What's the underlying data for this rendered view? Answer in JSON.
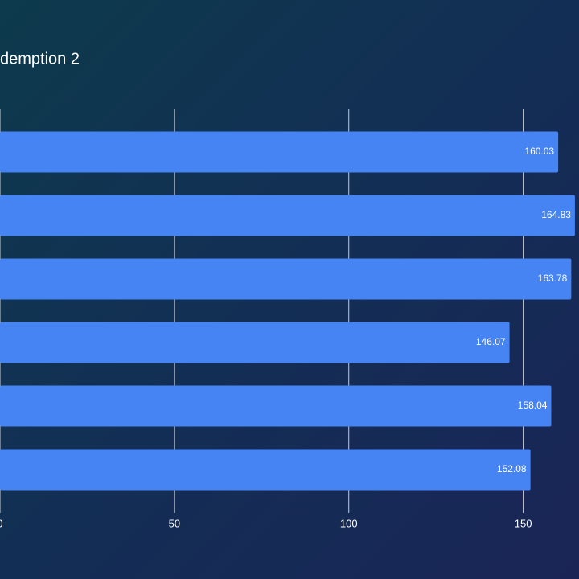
{
  "chart_data": {
    "type": "barh",
    "title": "demption 2",
    "categories": [
      null,
      null,
      null,
      null,
      null,
      null
    ],
    "values": [
      160.03,
      164.83,
      163.78,
      146.07,
      158.04,
      152.08
    ],
    "color": "#4584f2",
    "xlim": [
      0,
      166
    ],
    "xticks": [
      0,
      50,
      100,
      150
    ],
    "grid": true
  }
}
